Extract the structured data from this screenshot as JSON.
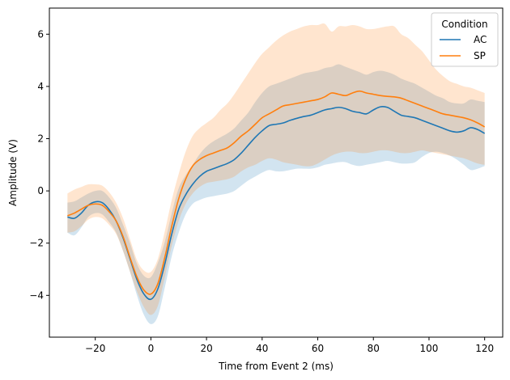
{
  "chart_data": {
    "type": "line",
    "title": "",
    "xlabel": "Time from Event 2 (ms)",
    "ylabel": "Amplitude (V)",
    "xlim": [
      -36.5,
      126.5
    ],
    "ylim": [
      -5.6,
      7.0
    ],
    "xticks": [
      -20,
      0,
      20,
      40,
      60,
      80,
      100,
      120
    ],
    "yticks": [
      -4,
      -2,
      0,
      2,
      4,
      6
    ],
    "xtick_labels": [
      "−20",
      "0",
      "20",
      "40",
      "60",
      "80",
      "100",
      "120"
    ],
    "ytick_labels": [
      "−4",
      "−2",
      "0",
      "2",
      "4",
      "6"
    ],
    "grid": false,
    "legend": {
      "title": "Condition",
      "position": "top-right"
    },
    "x": [
      -30,
      -27.5,
      -25,
      -22.5,
      -20,
      -17.5,
      -15,
      -12.5,
      -10,
      -7.5,
      -5,
      -2.5,
      0,
      2.5,
      5,
      7.5,
      10,
      12.5,
      15,
      17.5,
      20,
      22.5,
      25,
      27.5,
      30,
      32.5,
      35,
      37.5,
      40,
      42.5,
      45,
      47.5,
      50,
      52.5,
      55,
      57.5,
      60,
      62.5,
      65,
      67.5,
      70,
      72.5,
      75,
      77.5,
      80,
      82.5,
      85,
      87.5,
      90,
      92.5,
      95,
      97.5,
      100,
      102.5,
      105,
      107.5,
      110,
      112.5,
      115,
      117.5,
      120
    ],
    "series": [
      {
        "name": "AC",
        "color": "#1f77b4",
        "band_color": "#1f77b4",
        "values": [
          -1.0,
          -1.05,
          -0.85,
          -0.55,
          -0.42,
          -0.45,
          -0.72,
          -1.15,
          -1.8,
          -2.6,
          -3.4,
          -3.95,
          -4.15,
          -3.75,
          -2.8,
          -1.65,
          -0.7,
          -0.15,
          0.25,
          0.55,
          0.75,
          0.85,
          0.95,
          1.05,
          1.2,
          1.45,
          1.75,
          2.05,
          2.3,
          2.5,
          2.55,
          2.6,
          2.7,
          2.78,
          2.85,
          2.9,
          3.0,
          3.1,
          3.15,
          3.2,
          3.15,
          3.05,
          3.0,
          2.95,
          3.1,
          3.22,
          3.2,
          3.05,
          2.9,
          2.85,
          2.8,
          2.7,
          2.6,
          2.5,
          2.4,
          2.3,
          2.25,
          2.3,
          2.42,
          2.35,
          2.2
        ],
        "lower": [
          -1.6,
          -1.7,
          -1.4,
          -1.0,
          -0.85,
          -0.9,
          -1.2,
          -1.6,
          -2.3,
          -3.1,
          -4.0,
          -4.75,
          -5.1,
          -4.8,
          -3.7,
          -2.5,
          -1.6,
          -0.9,
          -0.5,
          -0.35,
          -0.25,
          -0.2,
          -0.15,
          -0.1,
          0.0,
          0.2,
          0.4,
          0.55,
          0.7,
          0.8,
          0.75,
          0.75,
          0.8,
          0.85,
          0.85,
          0.85,
          0.9,
          1.0,
          1.05,
          1.1,
          1.1,
          1.0,
          0.95,
          1.0,
          1.05,
          1.1,
          1.15,
          1.1,
          1.05,
          1.05,
          1.1,
          1.3,
          1.45,
          1.5,
          1.45,
          1.35,
          1.2,
          1.0,
          0.8,
          0.85,
          0.95
        ],
        "upper": [
          -0.45,
          -0.4,
          -0.25,
          -0.1,
          0.0,
          0.0,
          -0.25,
          -0.65,
          -1.3,
          -2.0,
          -2.8,
          -3.25,
          -3.3,
          -2.75,
          -1.95,
          -0.85,
          0.1,
          0.6,
          1.0,
          1.4,
          1.7,
          1.9,
          2.05,
          2.2,
          2.4,
          2.7,
          3.0,
          3.4,
          3.75,
          4.0,
          4.1,
          4.2,
          4.3,
          4.4,
          4.5,
          4.55,
          4.6,
          4.7,
          4.75,
          4.85,
          4.75,
          4.65,
          4.55,
          4.45,
          4.55,
          4.6,
          4.55,
          4.45,
          4.3,
          4.2,
          4.1,
          3.95,
          3.8,
          3.65,
          3.55,
          3.4,
          3.35,
          3.35,
          3.5,
          3.45,
          3.4
        ]
      },
      {
        "name": "SP",
        "color": "#ff7f0e",
        "band_color": "#ff7f0e",
        "values": [
          -0.95,
          -0.85,
          -0.7,
          -0.55,
          -0.5,
          -0.55,
          -0.8,
          -1.15,
          -1.75,
          -2.55,
          -3.3,
          -3.8,
          -3.95,
          -3.55,
          -2.55,
          -1.35,
          -0.3,
          0.45,
          0.95,
          1.2,
          1.35,
          1.45,
          1.55,
          1.65,
          1.85,
          2.1,
          2.3,
          2.55,
          2.8,
          2.95,
          3.1,
          3.25,
          3.3,
          3.35,
          3.4,
          3.45,
          3.5,
          3.6,
          3.75,
          3.7,
          3.65,
          3.75,
          3.82,
          3.75,
          3.7,
          3.65,
          3.62,
          3.6,
          3.55,
          3.45,
          3.35,
          3.25,
          3.15,
          3.05,
          2.95,
          2.9,
          2.85,
          2.8,
          2.72,
          2.6,
          2.45
        ],
        "lower": [
          -1.6,
          -1.55,
          -1.35,
          -1.1,
          -1.0,
          -1.05,
          -1.3,
          -1.65,
          -2.3,
          -3.1,
          -3.85,
          -4.45,
          -4.75,
          -4.4,
          -3.3,
          -2.1,
          -1.15,
          -0.5,
          -0.1,
          0.15,
          0.3,
          0.35,
          0.4,
          0.45,
          0.55,
          0.75,
          0.9,
          1.0,
          1.15,
          1.25,
          1.2,
          1.1,
          1.05,
          1.0,
          0.95,
          0.95,
          1.05,
          1.2,
          1.35,
          1.45,
          1.5,
          1.5,
          1.45,
          1.45,
          1.5,
          1.55,
          1.55,
          1.5,
          1.45,
          1.45,
          1.5,
          1.55,
          1.5,
          1.45,
          1.4,
          1.35,
          1.3,
          1.25,
          1.15,
          1.05,
          1.0
        ],
        "upper": [
          -0.1,
          0.05,
          0.15,
          0.25,
          0.25,
          0.2,
          -0.05,
          -0.45,
          -1.05,
          -1.85,
          -2.65,
          -3.05,
          -3.1,
          -2.6,
          -1.55,
          -0.35,
          0.65,
          1.5,
          2.1,
          2.4,
          2.6,
          2.8,
          3.1,
          3.35,
          3.7,
          4.1,
          4.5,
          4.9,
          5.25,
          5.5,
          5.75,
          5.95,
          6.1,
          6.2,
          6.3,
          6.35,
          6.35,
          6.4,
          6.1,
          6.3,
          6.3,
          6.35,
          6.3,
          6.2,
          6.2,
          6.25,
          6.3,
          6.3,
          6.0,
          5.85,
          5.6,
          5.35,
          5.0,
          4.65,
          4.4,
          4.2,
          4.1,
          4.0,
          3.95,
          3.85,
          3.75
        ]
      }
    ]
  }
}
